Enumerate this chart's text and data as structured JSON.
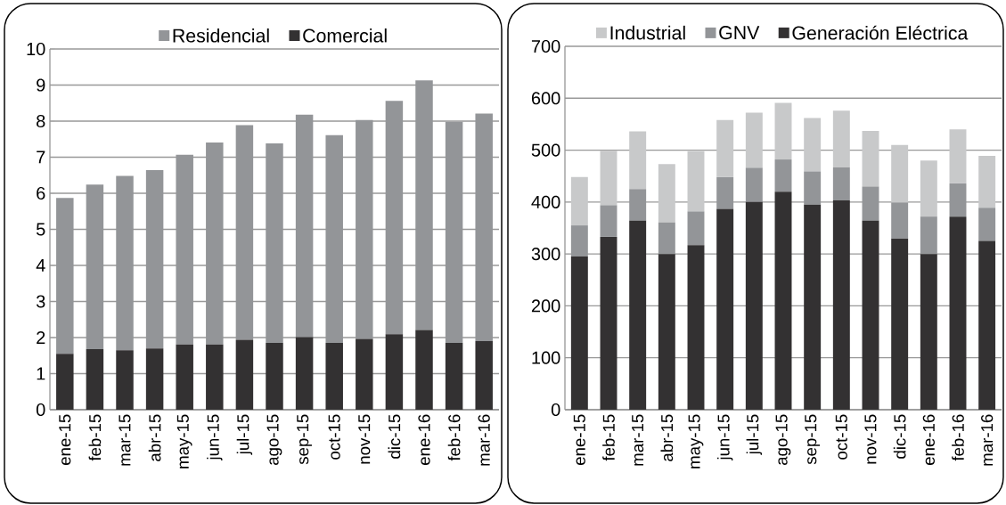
{
  "chart_data": [
    {
      "type": "bar",
      "stacked": true,
      "legend": "top",
      "grid": "y",
      "categories": [
        "ene-15",
        "feb-15",
        "mar-15",
        "abr-15",
        "may-15",
        "jun-15",
        "jul-15",
        "ago-15",
        "sep-15",
        "oct-15",
        "nov-15",
        "dic-15",
        "ene-16",
        "feb-16",
        "mar-16"
      ],
      "ylim": [
        0,
        10
      ],
      "yticks": [
        0,
        1,
        2,
        3,
        4,
        5,
        6,
        7,
        8,
        9,
        10
      ],
      "series": [
        {
          "name": "Comercial",
          "color": "#333132",
          "values": [
            1.55,
            1.68,
            1.65,
            1.7,
            1.81,
            1.81,
            1.94,
            1.85,
            2.01,
            1.85,
            1.96,
            2.09,
            2.21,
            1.85,
            1.9
          ]
        },
        {
          "name": "Residencial",
          "color": "#939598",
          "values": [
            4.32,
            4.56,
            4.83,
            4.94,
            5.26,
            5.6,
            5.95,
            5.53,
            6.17,
            5.76,
            6.07,
            6.47,
            6.92,
            6.13,
            6.31
          ]
        }
      ]
    },
    {
      "type": "bar",
      "stacked": true,
      "legend": "top",
      "grid": "y",
      "categories": [
        "ene-15",
        "feb-15",
        "mar-15",
        "abr-15",
        "may-15",
        "jun-15",
        "jul-15",
        "ago-15",
        "sep-15",
        "oct-15",
        "nov-15",
        "dic-15",
        "ene-16",
        "feb-16",
        "mar-16"
      ],
      "ylim": [
        0,
        700
      ],
      "yticks": [
        0,
        100,
        200,
        300,
        400,
        500,
        600,
        700
      ],
      "series": [
        {
          "name": "Generación Eléctrica",
          "color": "#333132",
          "values": [
            295,
            333,
            364,
            300,
            317,
            387,
            400,
            420,
            395,
            403,
            364,
            330,
            300,
            372,
            325
          ]
        },
        {
          "name": "GNV",
          "color": "#939598",
          "values": [
            60,
            61,
            61,
            61,
            65,
            61,
            66,
            62,
            64,
            64,
            66,
            69,
            72,
            64,
            64
          ]
        },
        {
          "name": "Industrial",
          "color": "#c8c9ca",
          "values": [
            93,
            105,
            111,
            112,
            116,
            110,
            106,
            109,
            103,
            109,
            107,
            111,
            108,
            104,
            100
          ]
        }
      ]
    }
  ]
}
